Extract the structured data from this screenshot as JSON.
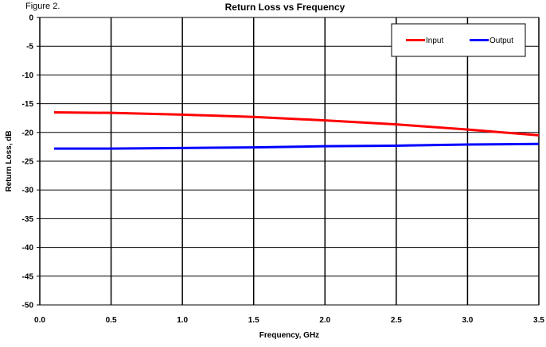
{
  "figure_label": "Figure 2.",
  "chart_data": {
    "type": "line",
    "title": "Return Loss vs Frequency",
    "xlabel": "Frequency, GHz",
    "ylabel": "Return Loss, dB",
    "xlim": [
      0.0,
      3.5
    ],
    "ylim": [
      -50,
      0
    ],
    "xticks": [
      "0.0",
      "0.5",
      "1.0",
      "1.5",
      "2.0",
      "2.5",
      "3.0",
      "3.5"
    ],
    "yticks": [
      "0",
      "-5",
      "-10",
      "-15",
      "-20",
      "-25",
      "-30",
      "-35",
      "-40",
      "-45",
      "-50"
    ],
    "grid": true,
    "legend_position": "top-right",
    "series": [
      {
        "name": "Input",
        "color": "#ff0000",
        "x": [
          0.1,
          0.5,
          1.0,
          1.5,
          2.0,
          2.5,
          3.0,
          3.5
        ],
        "y": [
          -16.5,
          -16.6,
          -16.9,
          -17.3,
          -17.9,
          -18.6,
          -19.5,
          -20.5
        ]
      },
      {
        "name": "Output",
        "color": "#0000ff",
        "x": [
          0.1,
          0.5,
          1.0,
          1.5,
          2.0,
          2.5,
          3.0,
          3.5
        ],
        "y": [
          -22.8,
          -22.8,
          -22.7,
          -22.6,
          -22.4,
          -22.3,
          -22.1,
          -22.0
        ]
      }
    ]
  }
}
